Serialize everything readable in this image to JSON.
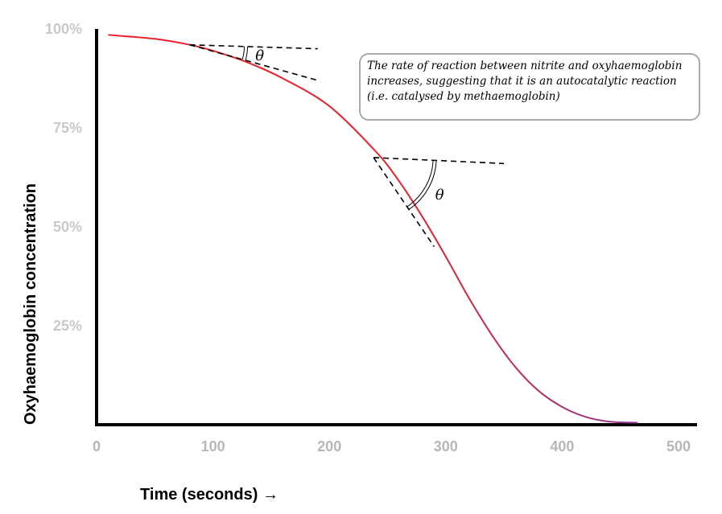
{
  "chart_data": {
    "type": "line",
    "title": "",
    "xlabel": "Time (seconds) →",
    "ylabel": "Oxyhaemoglobin concentration",
    "xlim": [
      0,
      500
    ],
    "ylim": [
      0,
      100
    ],
    "x_ticks": [
      "0",
      "100",
      "200",
      "300",
      "400",
      "500"
    ],
    "y_ticks": [
      {
        "value": 25,
        "label": "25%"
      },
      {
        "value": 50,
        "label": "50%"
      },
      {
        "value": 75,
        "label": "75%"
      },
      {
        "value": 100,
        "label": "100%"
      }
    ],
    "grid": false,
    "series": [
      {
        "x": [
          10,
          50,
          80,
          100,
          130,
          160,
          200,
          240,
          260,
          280,
          300,
          320,
          340,
          360,
          380,
          400,
          420,
          440,
          465
        ],
        "y": [
          98.5,
          97.5,
          96,
          94.5,
          91.5,
          87.5,
          80.5,
          69,
          61.5,
          52.5,
          42.5,
          32,
          22.5,
          14.5,
          8.5,
          4.5,
          2,
          0.8,
          0.5
        ],
        "color_start": "#e8212b",
        "color_end": "#7d3fa8"
      }
    ],
    "tangents": [
      {
        "at_x": 80,
        "horizontal": {
          "x": [
            80,
            190
          ],
          "y": [
            96,
            95
          ]
        },
        "tangent": {
          "x": [
            80,
            190
          ],
          "y": [
            96,
            87
          ]
        },
        "angle_label": "θ"
      },
      {
        "at_x": 238,
        "horizontal": {
          "x": [
            238,
            350
          ],
          "y": [
            67.5,
            66
          ]
        },
        "tangent": {
          "x": [
            238,
            290
          ],
          "y": [
            67.5,
            45
          ]
        },
        "angle_label": "θ"
      }
    ],
    "annotation": "The rate of reaction between nitrite and oxyhaemoglobin increases, suggesting that it is an autocatalytic reaction (i.e. catalysed by methaemoglobin)"
  }
}
